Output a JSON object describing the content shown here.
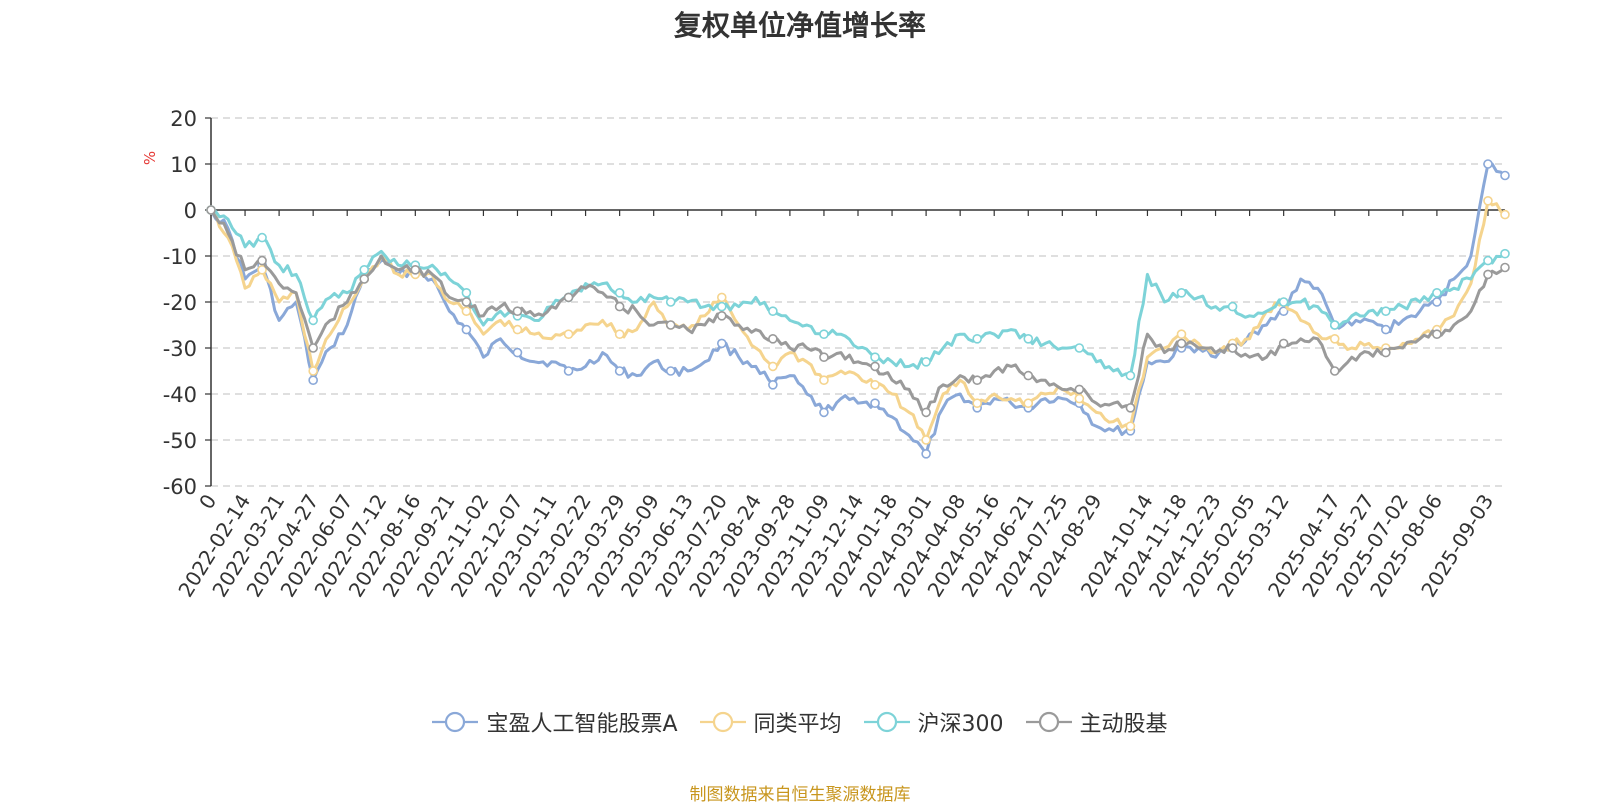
{
  "title": "复权单位净值增长率",
  "source_note": "制图数据来自恒生聚源数据库",
  "chart_data": {
    "type": "line",
    "title": "复权单位净值增长率",
    "ylabel": "%",
    "ylim": [
      -60,
      20
    ],
    "yticks": [
      20,
      10,
      0,
      -10,
      -20,
      -30,
      -40,
      -50,
      -60
    ],
    "grid": true,
    "legend_position": "bottom",
    "x_tick_labels": [
      "0",
      "2022-02-14",
      "2022-03-21",
      "2022-04-27",
      "2022-06-07",
      "2022-07-12",
      "2022-08-16",
      "2022-09-21",
      "2022-11-02",
      "2022-12-07",
      "2023-01-11",
      "2023-02-22",
      "2023-03-29",
      "2023-05-09",
      "2023-06-13",
      "2023-07-20",
      "2023-08-24",
      "2023-09-28",
      "2023-11-09",
      "2023-12-14",
      "2024-01-18",
      "2024-03-01",
      "2024-04-08",
      "2024-05-16",
      "2024-06-21",
      "2024-07-25",
      "2024-08-29",
      "2024-10-14",
      "2024-11-18",
      "2024-12-23",
      "2025-02-05",
      "2025-03-12",
      "2025-04-17",
      "2025-05-27",
      "2025-07-02",
      "2025-08-06",
      "2025-09-03"
    ],
    "x": [
      "0",
      "2022-01-24",
      "2022-02-14",
      "2022-03-01",
      "2022-03-21",
      "2022-04-07",
      "2022-04-27",
      "2022-05-16",
      "2022-06-07",
      "2022-06-22",
      "2022-07-12",
      "2022-07-26",
      "2022-08-16",
      "2022-09-01",
      "2022-09-21",
      "2022-10-12",
      "2022-11-02",
      "2022-11-18",
      "2022-12-07",
      "2022-12-22",
      "2023-01-11",
      "2023-02-03",
      "2023-02-22",
      "2023-03-10",
      "2023-03-29",
      "2023-04-19",
      "2023-05-09",
      "2023-05-24",
      "2023-06-13",
      "2023-06-30",
      "2023-07-20",
      "2023-08-04",
      "2023-08-24",
      "2023-09-11",
      "2023-09-28",
      "2023-10-20",
      "2023-11-09",
      "2023-11-24",
      "2023-12-14",
      "2023-12-29",
      "2024-01-18",
      "2024-02-07",
      "2024-03-01",
      "2024-03-19",
      "2024-04-08",
      "2024-04-26",
      "2024-05-16",
      "2024-06-03",
      "2024-06-21",
      "2024-07-09",
      "2024-07-25",
      "2024-08-12",
      "2024-08-29",
      "2024-09-20",
      "2024-10-08",
      "2024-10-14",
      "2024-11-01",
      "2024-11-18",
      "2024-12-05",
      "2024-12-23",
      "2025-01-10",
      "2025-02-05",
      "2025-02-21",
      "2025-03-12",
      "2025-03-28",
      "2025-04-08",
      "2025-04-17",
      "2025-05-09",
      "2025-05-27",
      "2025-06-16",
      "2025-07-02",
      "2025-07-18",
      "2025-08-06",
      "2025-08-22",
      "2025-09-01",
      "2025-09-03",
      "2025-09-05"
    ],
    "series": [
      {
        "name": "宝盈人工智能股票A",
        "color": "#8aa8d8",
        "values": [
          0,
          -4,
          -15,
          -12,
          -24,
          -20,
          -37,
          -30,
          -25,
          -14,
          -11,
          -14,
          -13,
          -15,
          -22,
          -26,
          -32,
          -28,
          -31,
          -33,
          -33,
          -35,
          -34,
          -31,
          -35,
          -36,
          -33,
          -35,
          -35,
          -33,
          -29,
          -32,
          -34,
          -38,
          -36,
          -40,
          -44,
          -41,
          -42,
          -42,
          -45,
          -49,
          -53,
          -43,
          -40,
          -43,
          -41,
          -42,
          -43,
          -41,
          -41,
          -42,
          -47,
          -48,
          -48,
          -33,
          -33,
          -30,
          -30,
          -32,
          -30,
          -27,
          -25,
          -22,
          -15,
          -17,
          -25,
          -25,
          -24,
          -26,
          -24,
          -22,
          -20,
          -15,
          -10,
          10,
          7.5
        ]
      },
      {
        "name": "同类平均",
        "color": "#f5d48e",
        "values": [
          0,
          -6,
          -17,
          -13,
          -20,
          -18,
          -35,
          -27,
          -21,
          -15,
          -10,
          -14,
          -14,
          -14,
          -20,
          -22,
          -27,
          -24,
          -26,
          -27,
          -28,
          -27,
          -25,
          -24,
          -27,
          -26,
          -20,
          -25,
          -26,
          -23,
          -19,
          -25,
          -30,
          -34,
          -31,
          -33,
          -37,
          -35,
          -36,
          -38,
          -40,
          -44,
          -50,
          -40,
          -37,
          -42,
          -40,
          -41,
          -42,
          -40,
          -39,
          -41,
          -44,
          -46,
          -47,
          -32,
          -30,
          -27,
          -29,
          -31,
          -29,
          -28,
          -22,
          -20,
          -24,
          -27,
          -28,
          -30,
          -29,
          -30,
          -29,
          -28,
          -26,
          -23,
          -16,
          2,
          -1
        ]
      },
      {
        "name": "沪深300",
        "color": "#7dd3d8",
        "values": [
          0,
          -2,
          -8,
          -6,
          -12,
          -14,
          -24,
          -19,
          -18,
          -13,
          -9,
          -12,
          -12,
          -12,
          -15,
          -18,
          -25,
          -22,
          -23,
          -24,
          -21,
          -19,
          -16,
          -16,
          -18,
          -20,
          -19,
          -20,
          -20,
          -21,
          -21,
          -21,
          -19,
          -22,
          -24,
          -25,
          -27,
          -27,
          -30,
          -32,
          -33,
          -34,
          -33,
          -30,
          -27,
          -28,
          -27,
          -26,
          -28,
          -29,
          -30,
          -30,
          -33,
          -35,
          -36,
          -14,
          -20,
          -18,
          -19,
          -21,
          -21,
          -23,
          -22,
          -20,
          -20,
          -21,
          -25,
          -23,
          -22,
          -22,
          -21,
          -20,
          -18,
          -17,
          -15,
          -11,
          -9.5
        ]
      },
      {
        "name": "主动股基",
        "color": "#9a9a9a",
        "values": [
          0,
          -5,
          -13,
          -11,
          -16,
          -18,
          -30,
          -24,
          -20,
          -15,
          -10,
          -13,
          -13,
          -14,
          -19,
          -20,
          -23,
          -21,
          -22,
          -23,
          -21,
          -19,
          -17,
          -18,
          -21,
          -22,
          -25,
          -25,
          -26,
          -25,
          -23,
          -25,
          -26,
          -28,
          -30,
          -30,
          -32,
          -31,
          -33,
          -34,
          -37,
          -39,
          -44,
          -38,
          -36,
          -37,
          -35,
          -34,
          -36,
          -37,
          -39,
          -39,
          -42,
          -42,
          -43,
          -27,
          -31,
          -29,
          -30,
          -31,
          -30,
          -32,
          -32,
          -29,
          -28,
          -28,
          -35,
          -32,
          -31,
          -31,
          -30,
          -28,
          -27,
          -25,
          -22,
          -14,
          -12.5
        ]
      }
    ]
  }
}
